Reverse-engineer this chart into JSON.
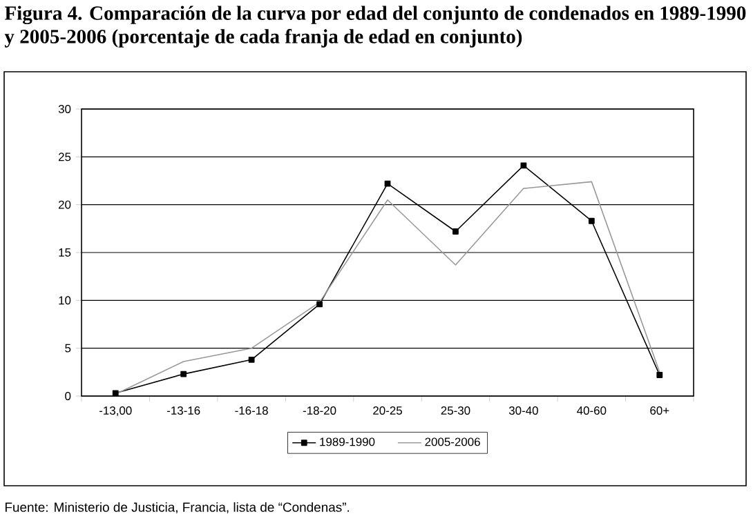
{
  "chart_data": {
    "type": "line",
    "title": "Figura 4. Comparación de la curva por edad del conjunto de condenados en 1989-1990 y 2005-2006 (porcentaje de cada franja de edad en conjunto)",
    "annotations": [
      "Fuente: Ministerio de Justicia, Francia, lista de “Condenas”."
    ],
    "categories": [
      "-13,00",
      "-13-16",
      "-16-18",
      "-18-20",
      "20-25",
      "25-30",
      "30-40",
      "40-60",
      "60+"
    ],
    "series": [
      {
        "name": "1989-1990",
        "color": "#000000",
        "marker": "square",
        "values": [
          0.3,
          2.3,
          3.8,
          9.6,
          22.2,
          17.2,
          24.1,
          18.3,
          2.2
        ]
      },
      {
        "name": "2005-2006",
        "color": "#999999",
        "marker": "none",
        "values": [
          0.2,
          3.6,
          5.0,
          9.8,
          20.5,
          13.7,
          21.7,
          22.4,
          2.5
        ]
      }
    ],
    "ylim": [
      0,
      30
    ],
    "yticks": [
      0,
      5,
      10,
      15,
      20,
      25,
      30
    ],
    "grid": "y",
    "legend": "bottom"
  }
}
